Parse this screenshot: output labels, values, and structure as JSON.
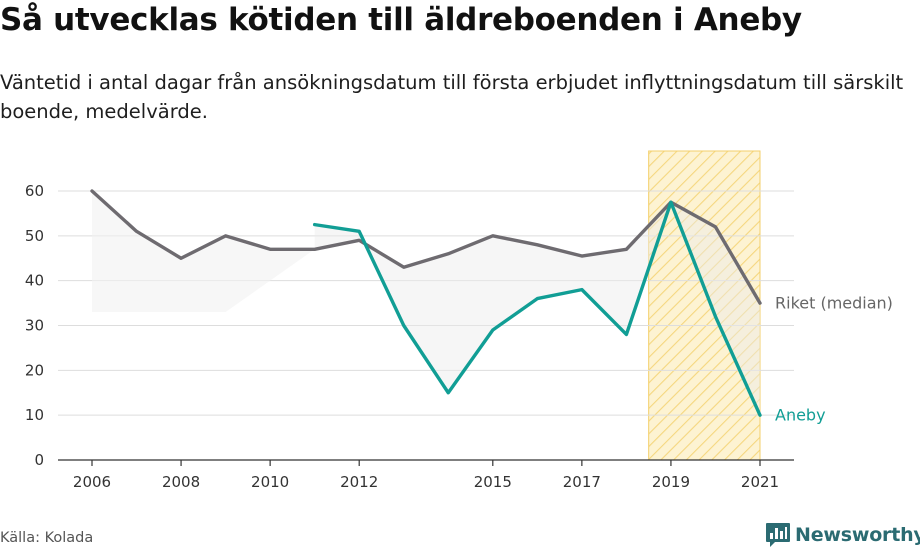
{
  "title": "Så utvecklas kötiden till äldreboenden i Aneby",
  "subtitle": "Väntetid i antal dagar från ansökningsdatum till första erbjudet inflyttningsdatum till särskilt boende, medelvärde.",
  "source": "Källa: Kolada",
  "brand": {
    "name": "Newsworthy",
    "icon": "newsworthy-logo-icon",
    "color": "#2b6b72"
  },
  "chart_data": {
    "type": "line",
    "title": "Så utvecklas kötiden till äldreboenden i Aneby",
    "xlabel": "",
    "ylabel": "",
    "ylim": [
      0,
      60
    ],
    "xlim": [
      2006,
      2021
    ],
    "y_ticks": [
      0,
      10,
      20,
      30,
      40,
      50,
      60
    ],
    "x_tick_labels": [
      "2006",
      "2008",
      "2010",
      "2012",
      "2015",
      "2017",
      "2019",
      "2021"
    ],
    "grid": "horizontal",
    "highlight_range": [
      2018.5,
      2021
    ],
    "series": [
      {
        "name": "Riket (median)",
        "color": "#6e6b70",
        "x": [
          2006,
          2007,
          2008,
          2009,
          2010,
          2011,
          2012,
          2013,
          2014,
          2015,
          2016,
          2017,
          2018,
          2019,
          2020,
          2021
        ],
        "values": [
          60,
          51,
          45,
          50,
          47,
          47,
          49,
          43,
          46,
          50,
          48,
          45.5,
          47,
          57.5,
          52,
          35
        ]
      },
      {
        "name": "Aneby",
        "color": "#119e95",
        "x": [
          2011,
          2012,
          2013,
          2014,
          2015,
          2016,
          2017,
          2018,
          2019,
          2020,
          2021
        ],
        "values": [
          52.5,
          51,
          30,
          15,
          29,
          36,
          38,
          28,
          57.5,
          32,
          10
        ]
      }
    ]
  }
}
